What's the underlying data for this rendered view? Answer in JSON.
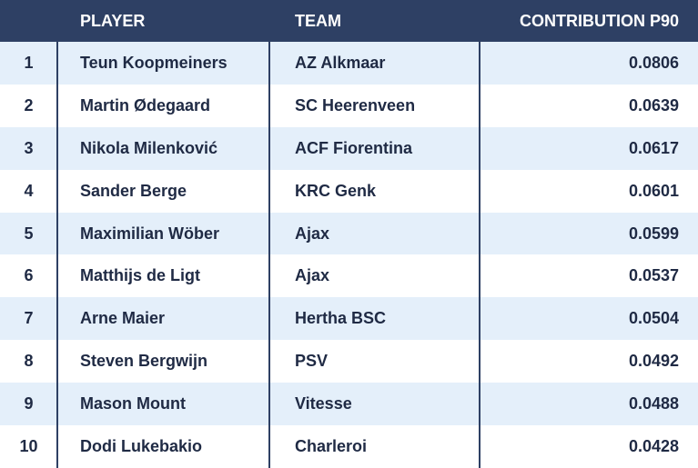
{
  "chart_data": {
    "type": "table",
    "columns": [
      "",
      "PLAYER",
      "TEAM",
      "CONTRIBUTION P90"
    ],
    "rows": [
      {
        "rank": "1",
        "player": "Teun Koopmeiners",
        "team": "AZ Alkmaar",
        "value": "0.0806"
      },
      {
        "rank": "2",
        "player": "Martin Ødegaard",
        "team": "SC Heerenveen",
        "value": "0.0639"
      },
      {
        "rank": "3",
        "player": "Nikola Milenković",
        "team": "ACF Fiorentina",
        "value": "0.0617"
      },
      {
        "rank": "4",
        "player": "Sander Berge",
        "team": "KRC Genk",
        "value": "0.0601"
      },
      {
        "rank": "5",
        "player": "Maximilian Wöber",
        "team": "Ajax",
        "value": "0.0599"
      },
      {
        "rank": "6",
        "player": "Matthijs de Ligt",
        "team": "Ajax",
        "value": "0.0537"
      },
      {
        "rank": "7",
        "player": "Arne Maier",
        "team": "Hertha BSC",
        "value": "0.0504"
      },
      {
        "rank": "8",
        "player": "Steven Bergwijn",
        "team": "PSV",
        "value": "0.0492"
      },
      {
        "rank": "9",
        "player": "Mason Mount",
        "team": "Vitesse",
        "value": "0.0488"
      },
      {
        "rank": "10",
        "player": "Dodi Lukebakio",
        "team": "Charleroi",
        "value": "0.0428"
      }
    ]
  },
  "colors": {
    "header_bg": "#2e4064",
    "header_text": "#ffffff",
    "row_alt_bg": "#e4effa",
    "body_text": "#1f2a44"
  }
}
